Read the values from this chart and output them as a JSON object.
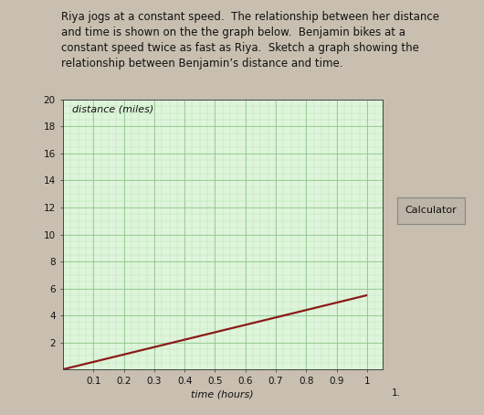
{
  "title_text": "Riya jogs at a constant speed.  The relationship between her distance\nand time is shown on the the graph below.  Benjamin bikes at a\nconstant speed twice as fast as Riya.  Sketch a graph showing the\nrelationship between Benjamin’s distance and time.",
  "ylabel_rotated": "distance (miles)",
  "xlabel": "time (hours)",
  "xlim": [
    0,
    1.05
  ],
  "ylim": [
    0,
    20
  ],
  "xticks": [
    0.1,
    0.2,
    0.3,
    0.4,
    0.5,
    0.6,
    0.7,
    0.8,
    0.9,
    1.0
  ],
  "xtick_labels": [
    "0.1",
    "0.2",
    "0.3",
    "0.4",
    "0.5",
    "0.6",
    "0.7",
    "0.8",
    "0.9",
    "1"
  ],
  "yticks": [
    2,
    4,
    6,
    8,
    10,
    12,
    14,
    16,
    18,
    20
  ],
  "ytick_labels": [
    "2",
    "4",
    "6",
    "8",
    "10",
    "12",
    "14",
    "16",
    "18",
    "20"
  ],
  "line_x": [
    0,
    1.0
  ],
  "line_y": [
    0,
    5.5
  ],
  "line_color": "#8B1A1A",
  "minor_grid_color": "#b8ddb4",
  "major_grid_color": "#90c890",
  "plot_bg": "#dff5db",
  "figure_bg": "#c8bfb0",
  "text_bg": "#ddd5c5",
  "calc_bg": "#bdb5a8",
  "calculator_label": "Calculator",
  "title_fontsize": 8.5,
  "axis_label_fontsize": 8,
  "tick_fontsize": 7.5,
  "calc_fontsize": 8
}
